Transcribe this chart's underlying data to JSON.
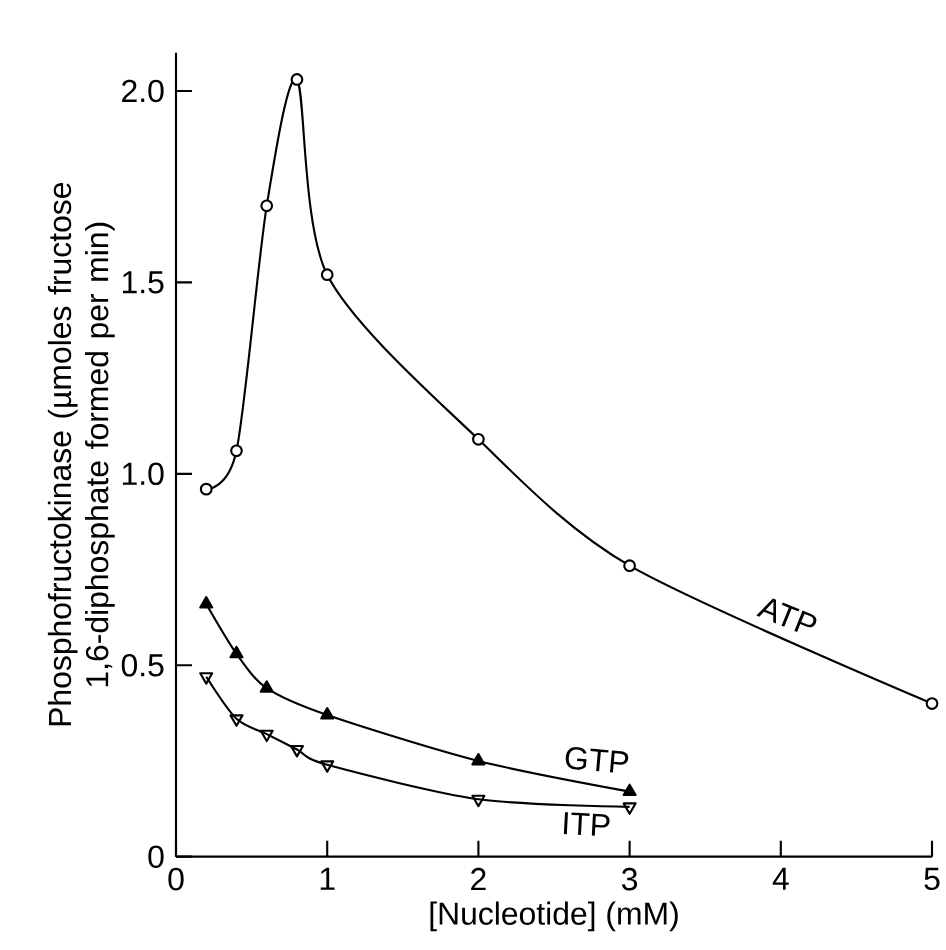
{
  "chart_data": {
    "type": "line",
    "xlabel": "[Nucleotide] (mM)",
    "ylabel": "Phosphofructokinase (µmoles fructose 1,6-diphosphate formed per min)",
    "xlim": [
      0,
      5
    ],
    "ylim": [
      0,
      2.1
    ],
    "xticks": [
      0,
      1,
      2,
      3,
      4,
      5
    ],
    "yticks": [
      0,
      0.5,
      {
        "value": 1,
        "label": "1.0"
      },
      1.5,
      {
        "value": 2,
        "label": "2.0"
      }
    ],
    "series": [
      {
        "name": "ATP",
        "color": "#000000",
        "marker": "circle",
        "x": [
          0.2,
          0.4,
          0.6,
          0.8,
          1.0,
          2,
          3,
          5
        ],
        "values": [
          0.96,
          1.06,
          1.7,
          2.03,
          1.52,
          1.09,
          0.76,
          0.4
        ]
      },
      {
        "name": "GTP",
        "color": "#000000",
        "marker": "triangle",
        "x": [
          0.2,
          0.4,
          0.6,
          1.0,
          2,
          3
        ],
        "values": [
          0.66,
          0.53,
          0.44,
          0.37,
          0.25,
          0.17
        ]
      },
      {
        "name": "ITP",
        "color": "#000000",
        "marker": "triangle down",
        "x": [
          0.2,
          0.4,
          0.6,
          0.8,
          1.0,
          2,
          3
        ],
        "values": [
          0.47,
          0.36,
          0.32,
          0.28,
          0.24,
          0.15,
          0.13
        ]
      }
    ]
  }
}
